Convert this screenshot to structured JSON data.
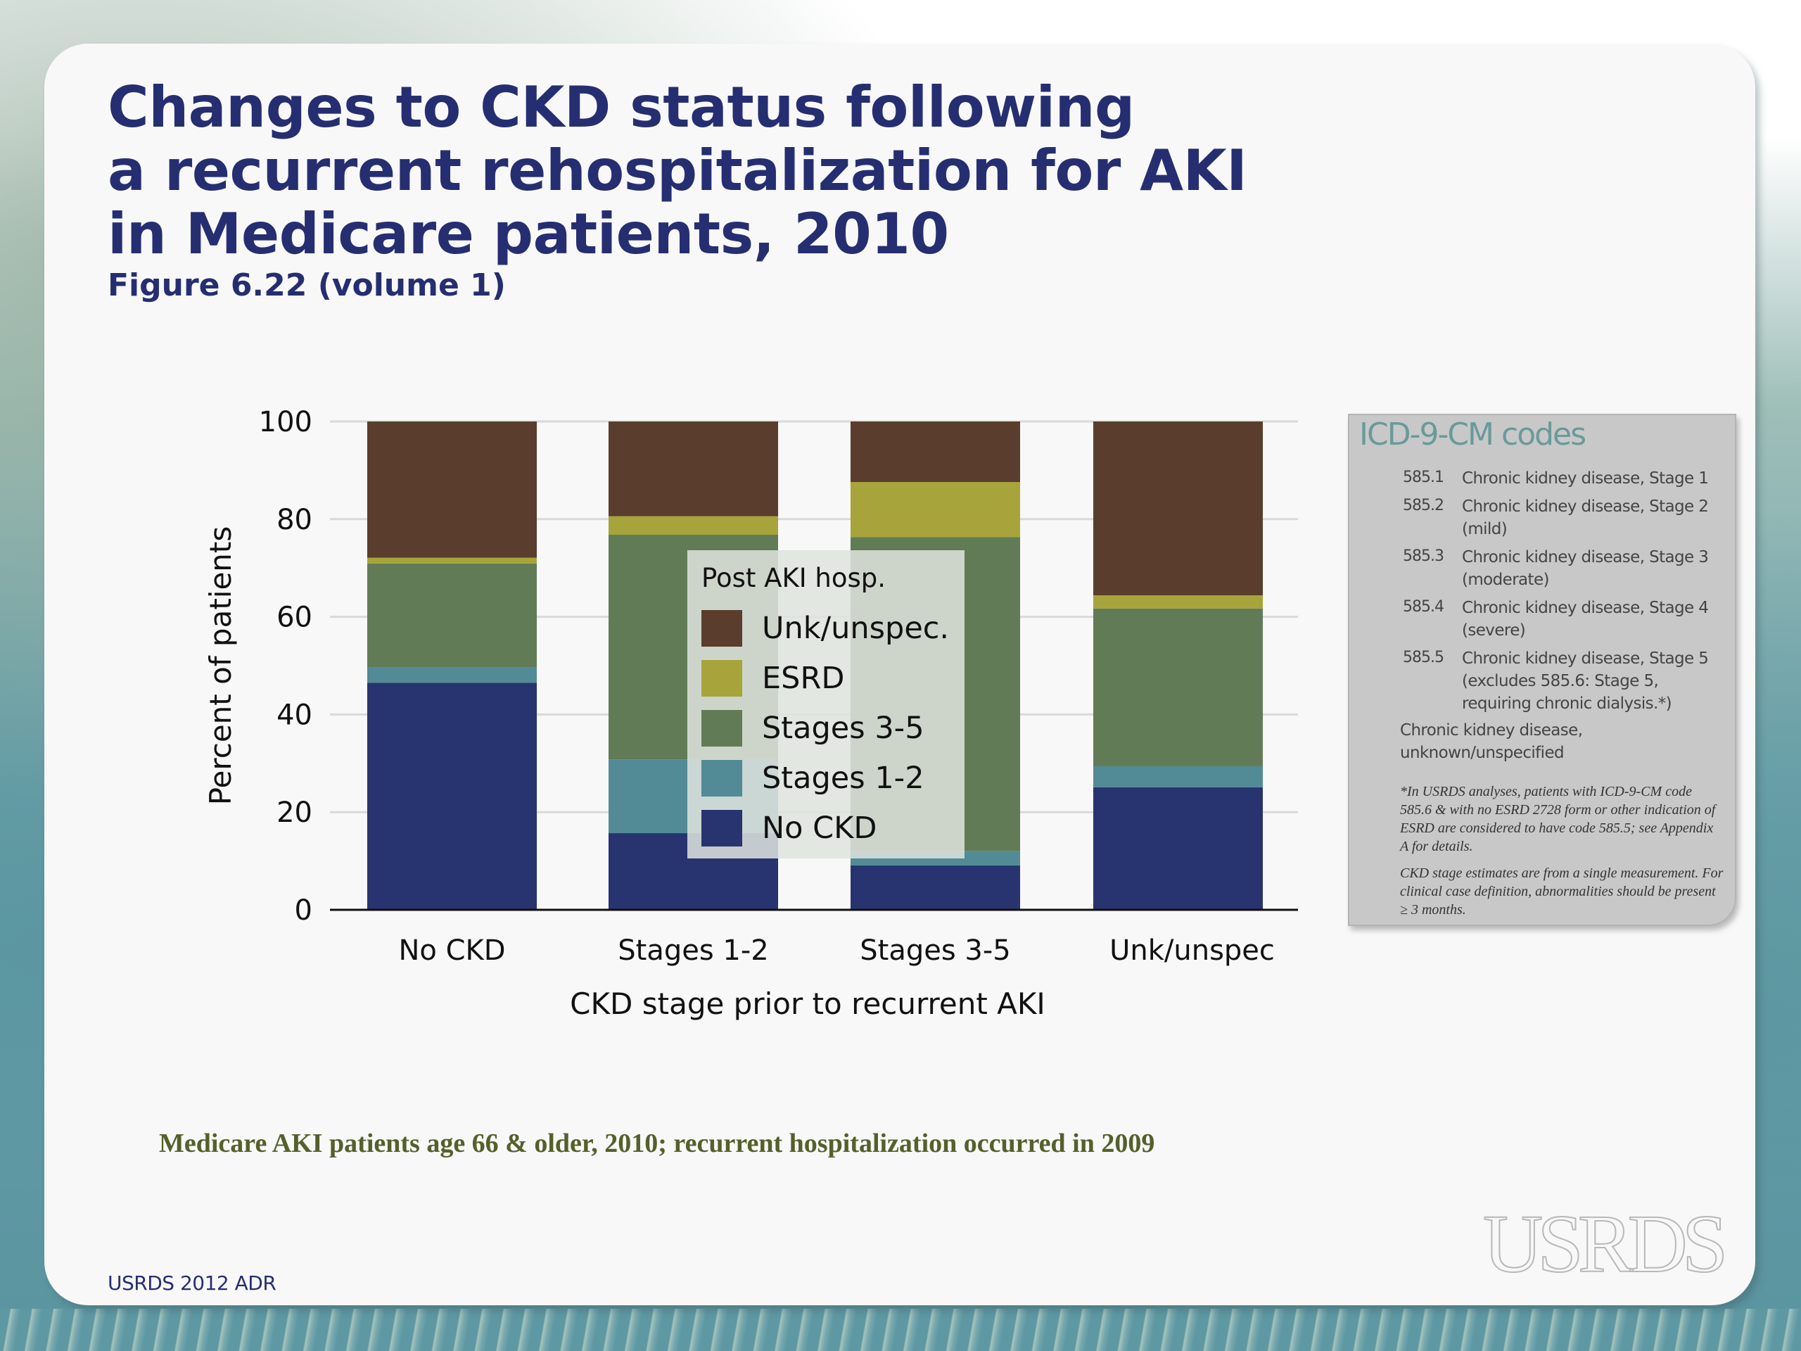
{
  "slide": {
    "title_lines": [
      "Changes to CKD status following",
      "a recurrent rehospitalization for AKI",
      "in Medicare patients, 2010"
    ],
    "subtitle": "Figure 6.22 (volume 1)",
    "source_note": "Medicare AKI patients age 66 & older, 2010; recurrent hospitalization occurred in 2009",
    "footer_left": "USRDS 2012 ADR",
    "logo_text": "USRDS",
    "logo_icon": "usrds-logo"
  },
  "chart_data": {
    "type": "bar",
    "stacked": true,
    "title": "Changes to CKD status following a recurrent rehospitalization for AKI in Medicare patients, 2010",
    "xlabel": "CKD stage prior to recurrent AKI",
    "ylabel": "Percent of patients",
    "ylim": [
      0,
      100
    ],
    "yticks": [
      0,
      20,
      40,
      60,
      80,
      100
    ],
    "grid": true,
    "categories": [
      "No CKD",
      "Stages 1-2",
      "Stages 3-5",
      "Unk/unspec"
    ],
    "legend": {
      "title": "Post AKI hosp.",
      "placement": "center",
      "order": [
        "Unk/unspec.",
        "ESRD",
        "Stages 3-5",
        "Stages 1-2",
        "No CKD"
      ]
    },
    "series": [
      {
        "name": "No CKD",
        "color": "#27346f",
        "values": [
          46.5,
          15.7,
          9.1,
          25.1
        ]
      },
      {
        "name": "Stages 1-2",
        "color": "#528a96",
        "values": [
          3.1,
          15.1,
          2.9,
          4.3
        ]
      },
      {
        "name": "Stages 3-5",
        "color": "#617b57",
        "values": [
          21.3,
          46.0,
          64.3,
          32.3
        ]
      },
      {
        "name": "ESRD",
        "color": "#a6a43a",
        "values": [
          1.2,
          3.8,
          11.3,
          2.7
        ]
      },
      {
        "name": "Unk/unspec.",
        "color": "#5a3d2d",
        "values": [
          27.9,
          19.4,
          12.4,
          35.6
        ]
      }
    ]
  },
  "icd_panel": {
    "title": "ICD-9-CM codes",
    "codes": [
      {
        "code": "585.1",
        "desc": "Chronic kidney disease, Stage 1"
      },
      {
        "code": "585.2",
        "desc": "Chronic kidney disease, Stage 2 (mild)"
      },
      {
        "code": "585.3",
        "desc": "Chronic kidney disease, Stage 3 (moderate)"
      },
      {
        "code": "585.4",
        "desc": "Chronic kidney disease, Stage 4 (severe)"
      },
      {
        "code": "585.5",
        "desc": "Chronic kidney disease, Stage 5 (excludes 585.6: Stage 5, requiring chronic dialysis.*)"
      }
    ],
    "unknown": "Chronic kidney disease, unknown/unspecified",
    "note1": "*In USRDS analyses, patients with ICD-9-CM code 585.6 & with no ESRD 2728 form or other indication of ESRD are considered to have code 585.5; see Appendix A for details.",
    "note2": "CKD stage estimates are from a single measurement. For clinical case definition, abnormalities should be present ≥ 3 months."
  }
}
